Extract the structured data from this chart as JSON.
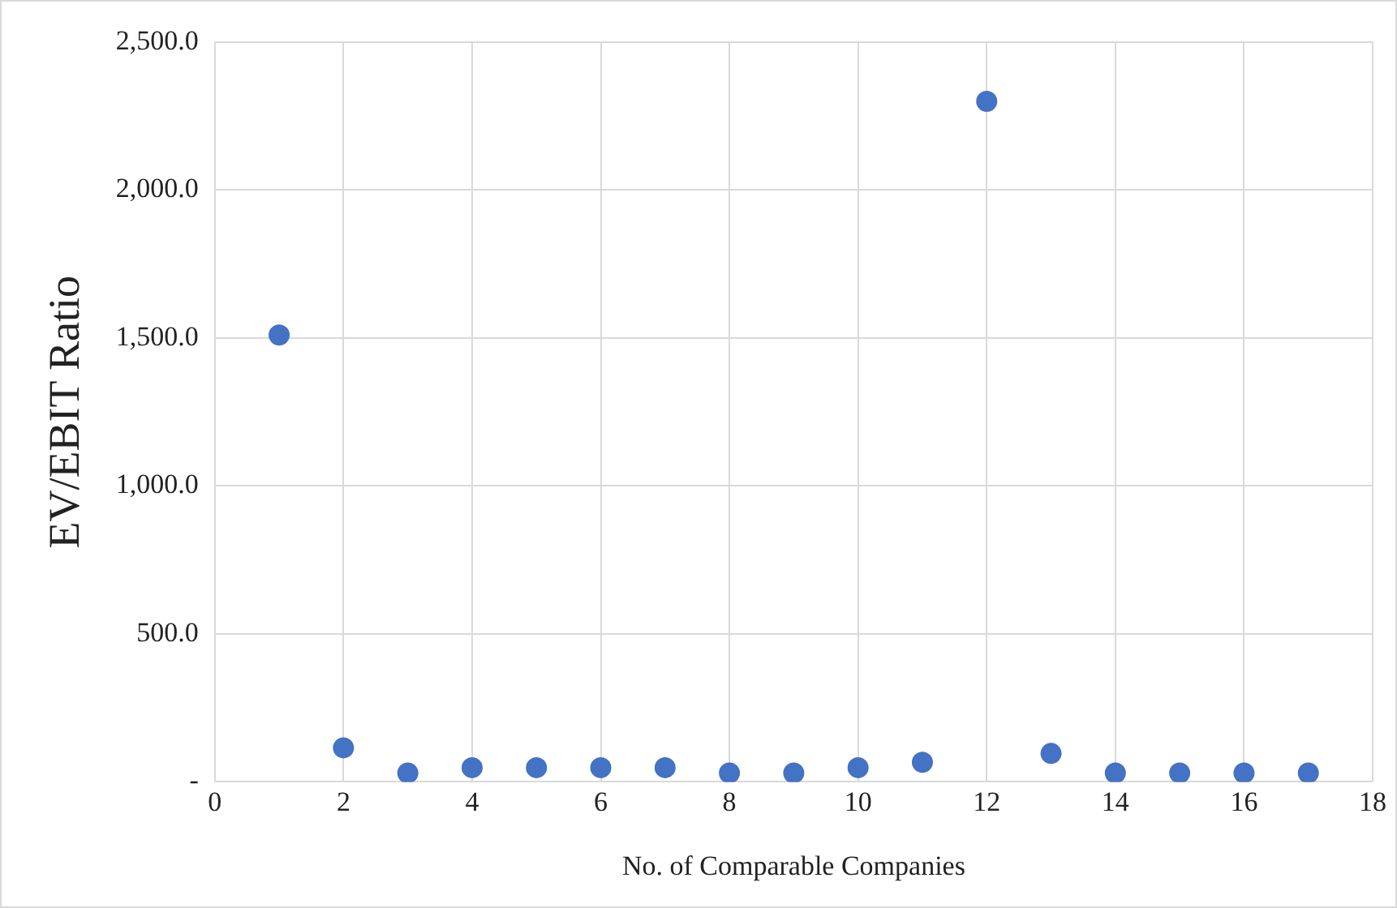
{
  "chart_data": {
    "type": "scatter",
    "xlabel": "No. of Comparable Companies",
    "ylabel": "EV/EBIT Ratio",
    "series": [
      {
        "color": "#4472c4",
        "x": [
          1,
          2,
          3,
          4,
          5,
          6,
          7,
          8,
          9,
          10,
          11,
          12,
          13,
          14,
          15,
          16,
          17
        ],
        "values": [
          1510,
          115,
          30,
          48,
          48,
          48,
          48,
          30,
          30,
          48,
          66,
          2300,
          96,
          30,
          30,
          30,
          30
        ]
      }
    ],
    "xlim": [
      0,
      18
    ],
    "xticks": [
      0,
      2,
      4,
      6,
      8,
      10,
      12,
      14,
      16,
      18
    ],
    "ylim": [
      0,
      2500
    ],
    "yticks": [
      {
        "value": 0,
        "label": "-"
      },
      {
        "value": 500,
        "label": "500.0"
      },
      {
        "value": 1000,
        "label": "1,000.0"
      },
      {
        "value": 1500,
        "label": "1,500.0"
      },
      {
        "value": 2000,
        "label": "2,000.0"
      },
      {
        "value": 2500,
        "label": "2,500.0"
      }
    ],
    "grid": true,
    "marker": "circle",
    "legend": false
  }
}
